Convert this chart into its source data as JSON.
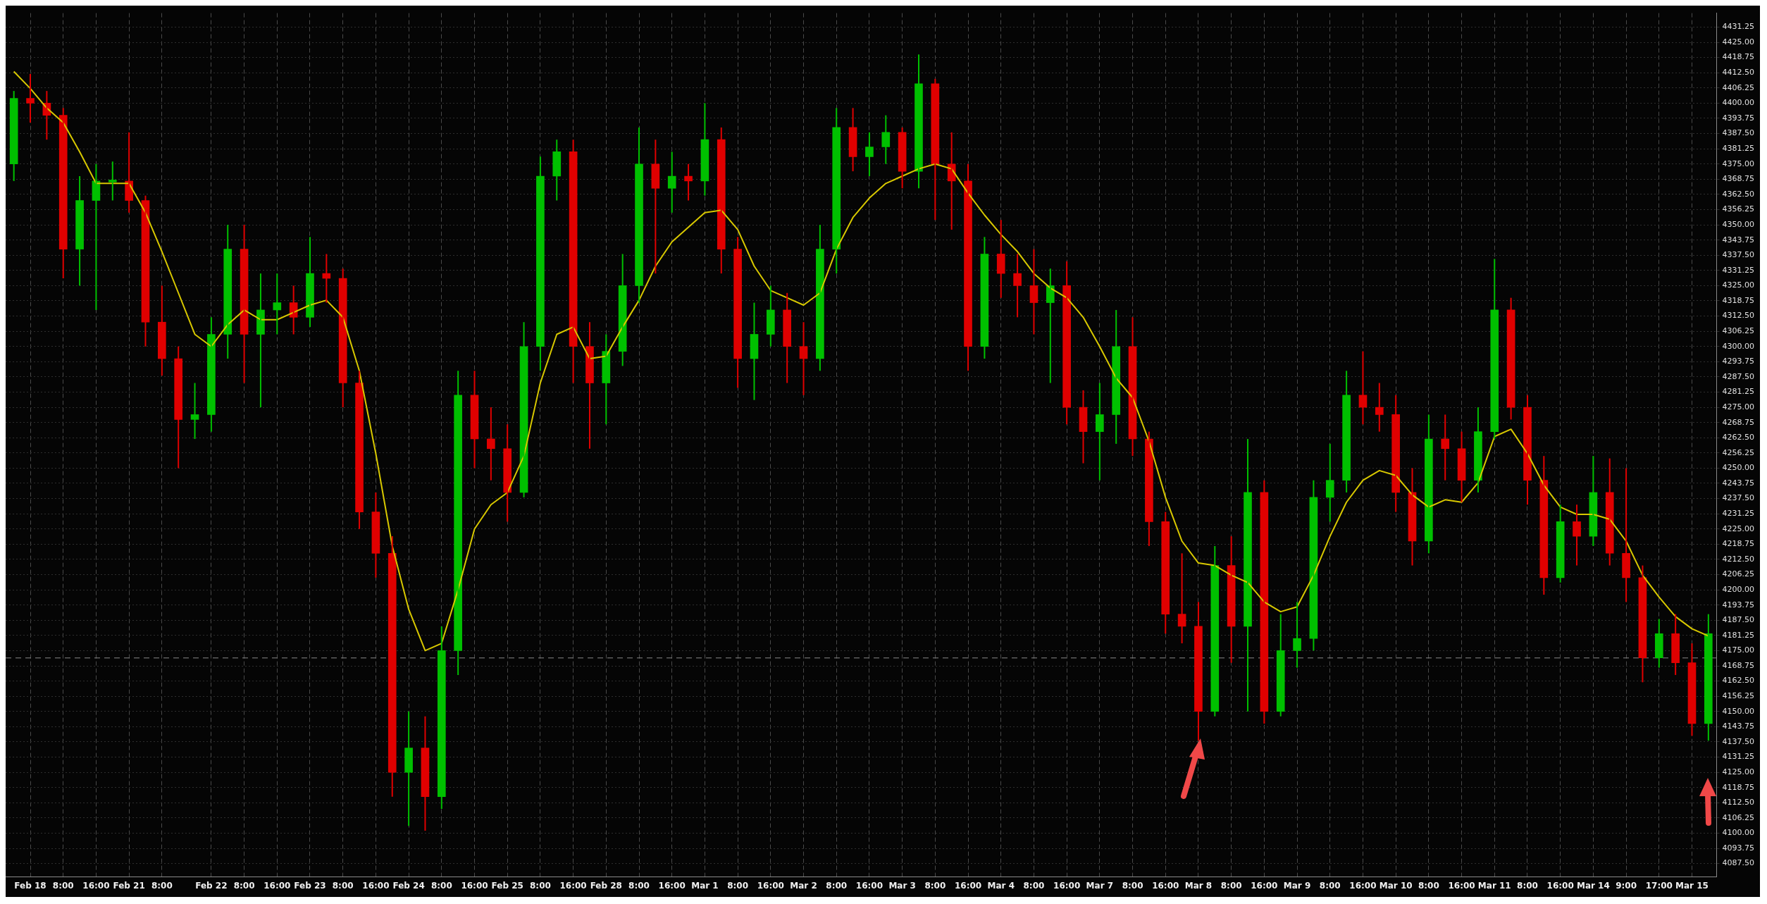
{
  "chart_data": {
    "type": "candlestick",
    "categories": [
      null,
      "Feb 18",
      null,
      "8:00",
      null,
      "16:00",
      null,
      "Feb 21",
      null,
      "8:00",
      null,
      null,
      "Feb 22",
      null,
      "8:00",
      null,
      "16:00",
      null,
      "Feb 23",
      null,
      "8:00",
      null,
      "16:00",
      null,
      "Feb 24",
      null,
      "8:00",
      null,
      "16:00",
      null,
      "Feb 25",
      null,
      "8:00",
      null,
      "16:00",
      null,
      "Feb 28",
      null,
      "8:00",
      null,
      "16:00",
      null,
      "Mar 1",
      null,
      "8:00",
      null,
      "16:00",
      null,
      "Mar 2",
      null,
      "8:00",
      null,
      "16:00",
      null,
      "Mar 3",
      null,
      "8:00",
      null,
      "16:00",
      null,
      "Mar 4",
      null,
      "8:00",
      null,
      "16:00",
      null,
      "Mar 7",
      null,
      "8:00",
      null,
      "16:00",
      null,
      "Mar 8",
      null,
      "8:00",
      null,
      "16:00",
      null,
      "Mar 9",
      null,
      "8:00",
      null,
      "16:00",
      null,
      "Mar 10",
      null,
      "8:00",
      null,
      "16:00",
      null,
      "Mar 11",
      null,
      "8:00",
      null,
      "16:00",
      null,
      "Mar 14",
      null,
      "9:00",
      null,
      "17:00",
      null,
      "Mar 15",
      null
    ],
    "ohlc": [
      [
        4375,
        4405,
        4368,
        4402
      ],
      [
        4402,
        4412,
        4392,
        4400
      ],
      [
        4400,
        4405,
        4385,
        4395
      ],
      [
        4395,
        4398,
        4328,
        4340
      ],
      [
        4340,
        4370,
        4325,
        4360
      ],
      [
        4360,
        4375,
        4315,
        4368
      ],
      [
        4368,
        4376,
        4360,
        4368
      ],
      [
        4368,
        4388,
        4355,
        4360
      ],
      [
        4360,
        4362,
        4300,
        4310
      ],
      [
        4310,
        4325,
        4288,
        4295
      ],
      [
        4295,
        4300,
        4250,
        4270
      ],
      [
        4270,
        4285,
        4262,
        4272
      ],
      [
        4272,
        4312,
        4265,
        4305
      ],
      [
        4305,
        4350,
        4295,
        4340
      ],
      [
        4340,
        4350,
        4285,
        4305
      ],
      [
        4305,
        4330,
        4275,
        4315
      ],
      [
        4315,
        4330,
        4305,
        4318
      ],
      [
        4318,
        4325,
        4305,
        4312
      ],
      [
        4312,
        4345,
        4308,
        4330
      ],
      [
        4330,
        4338,
        4318,
        4328
      ],
      [
        4328,
        4332,
        4275,
        4285
      ],
      [
        4285,
        4290,
        4225,
        4232
      ],
      [
        4232,
        4240,
        4205,
        4215
      ],
      [
        4215,
        4222,
        4115,
        4125
      ],
      [
        4125,
        4150,
        4103,
        4135
      ],
      [
        4135,
        4148,
        4101,
        4115
      ],
      [
        4115,
        4185,
        4110,
        4175
      ],
      [
        4175,
        4290,
        4165,
        4280
      ],
      [
        4280,
        4290,
        4250,
        4262
      ],
      [
        4262,
        4275,
        4245,
        4258
      ],
      [
        4258,
        4268,
        4228,
        4240
      ],
      [
        4240,
        4310,
        4238,
        4300
      ],
      [
        4300,
        4378,
        4290,
        4370
      ],
      [
        4370,
        4385,
        4360,
        4380
      ],
      [
        4380,
        4385,
        4285,
        4300
      ],
      [
        4300,
        4310,
        4258,
        4285
      ],
      [
        4285,
        4305,
        4268,
        4298
      ],
      [
        4298,
        4338,
        4292,
        4325
      ],
      [
        4325,
        4390,
        4318,
        4375
      ],
      [
        4375,
        4385,
        4330,
        4365
      ],
      [
        4365,
        4380,
        4355,
        4370
      ],
      [
        4370,
        4375,
        4360,
        4368
      ],
      [
        4368,
        4400,
        4362,
        4385
      ],
      [
        4385,
        4390,
        4330,
        4340
      ],
      [
        4340,
        4345,
        4283,
        4295
      ],
      [
        4295,
        4318,
        4278,
        4305
      ],
      [
        4305,
        4325,
        4300,
        4315
      ],
      [
        4315,
        4322,
        4285,
        4300
      ],
      [
        4300,
        4310,
        4280,
        4295
      ],
      [
        4295,
        4350,
        4290,
        4340
      ],
      [
        4340,
        4398,
        4330,
        4390
      ],
      [
        4390,
        4398,
        4372,
        4378
      ],
      [
        4378,
        4388,
        4370,
        4382
      ],
      [
        4382,
        4395,
        4375,
        4388
      ],
      [
        4388,
        4390,
        4365,
        4372
      ],
      [
        4372,
        4420,
        4365,
        4408
      ],
      [
        4408,
        4410,
        4352,
        4375
      ],
      [
        4375,
        4388,
        4348,
        4368
      ],
      [
        4368,
        4375,
        4290,
        4300
      ],
      [
        4300,
        4345,
        4295,
        4338
      ],
      [
        4338,
        4352,
        4320,
        4330
      ],
      [
        4330,
        4338,
        4312,
        4325
      ],
      [
        4325,
        4340,
        4305,
        4318
      ],
      [
        4318,
        4332,
        4285,
        4325
      ],
      [
        4325,
        4335,
        4268,
        4275
      ],
      [
        4275,
        4282,
        4252,
        4265
      ],
      [
        4265,
        4285,
        4245,
        4272
      ],
      [
        4272,
        4315,
        4260,
        4300
      ],
      [
        4300,
        4312,
        4255,
        4262
      ],
      [
        4262,
        4265,
        4218,
        4228
      ],
      [
        4228,
        4232,
        4182,
        4190
      ],
      [
        4190,
        4215,
        4178,
        4185
      ],
      [
        4185,
        4195,
        4138,
        4150
      ],
      [
        4150,
        4218,
        4148,
        4210
      ],
      [
        4210,
        4222,
        4170,
        4185
      ],
      [
        4185,
        4262,
        4150,
        4240
      ],
      [
        4240,
        4245,
        4145,
        4150
      ],
      [
        4150,
        4190,
        4148,
        4175
      ],
      [
        4175,
        4195,
        4168,
        4180
      ],
      [
        4180,
        4245,
        4175,
        4238
      ],
      [
        4238,
        4260,
        4228,
        4245
      ],
      [
        4245,
        4290,
        4240,
        4280
      ],
      [
        4280,
        4298,
        4268,
        4275
      ],
      [
        4275,
        4285,
        4265,
        4272
      ],
      [
        4272,
        4280,
        4232,
        4240
      ],
      [
        4240,
        4250,
        4210,
        4220
      ],
      [
        4220,
        4272,
        4215,
        4262
      ],
      [
        4262,
        4272,
        4245,
        4258
      ],
      [
        4258,
        4265,
        4236,
        4245
      ],
      [
        4245,
        4275,
        4240,
        4265
      ],
      [
        4265,
        4336,
        4262,
        4315
      ],
      [
        4315,
        4320,
        4270,
        4275
      ],
      [
        4275,
        4280,
        4235,
        4245
      ],
      [
        4245,
        4255,
        4198,
        4205
      ],
      [
        4205,
        4235,
        4203,
        4228
      ],
      [
        4228,
        4235,
        4210,
        4222
      ],
      [
        4222,
        4255,
        4218,
        4240
      ],
      [
        4240,
        4254,
        4210,
        4215
      ],
      [
        4215,
        4250,
        4195,
        4205
      ],
      [
        4205,
        4210,
        4162,
        4172
      ],
      [
        4172,
        4188,
        4168,
        4182
      ],
      [
        4182,
        4190,
        4165,
        4170
      ],
      [
        4170,
        4178,
        4140,
        4145
      ],
      [
        4145,
        4190,
        4138,
        4182
      ]
    ],
    "series": [
      {
        "type": "line",
        "color": "#d8c800",
        "values": [
          4413,
          4406,
          4398,
          4392,
          4380,
          4367,
          4367,
          4367,
          4355,
          4339,
          4322,
          4305,
          4300,
          4309,
          4315,
          4311,
          4311,
          4314,
          4317,
          4319,
          4312,
          4290,
          4256,
          4218,
          4192,
          4175,
          4178,
          4200,
          4225,
          4235,
          4240,
          4255,
          4285,
          4305,
          4308,
          4295,
          4296,
          4308,
          4319,
          4333,
          4343,
          4349,
          4355,
          4356,
          4348,
          4333,
          4323,
          4320,
          4317,
          4322,
          4340,
          4353,
          4361,
          4367,
          4370,
          4373,
          4375,
          4373,
          4363,
          4354,
          4346,
          4339,
          4330,
          4324,
          4320,
          4312,
          4300,
          4287,
          4279,
          4261,
          4238,
          4220,
          4211,
          4210,
          4206,
          4203,
          4195,
          4191,
          4193,
          4206,
          4222,
          4236,
          4245,
          4249,
          4247,
          4239,
          4234,
          4237,
          4236,
          4244,
          4263,
          4266,
          4256,
          4243,
          4234,
          4231,
          4231,
          4229,
          4220,
          4206,
          4197,
          4189,
          4184,
          4181
        ]
      }
    ],
    "ylim": [
      4082,
      4437
    ],
    "yticks": [
      {
        "value": 4087.5,
        "label": "4087.50"
      },
      {
        "value": 4093.75,
        "label": "4093.75"
      },
      {
        "value": 4100,
        "label": "4100.00"
      },
      {
        "value": 4106.25,
        "label": "4106.25"
      },
      {
        "value": 4112.5,
        "label": "4112.50"
      },
      {
        "value": 4118.75,
        "label": "4118.75"
      },
      {
        "value": 4125,
        "label": "4125.00"
      },
      {
        "value": 4131.25,
        "label": "4131.25"
      },
      {
        "value": 4137.5,
        "label": "4137.50"
      },
      {
        "value": 4143.75,
        "label": "4143.75"
      },
      {
        "value": 4150,
        "label": "4150.00"
      },
      {
        "value": 4156.25,
        "label": "4156.25"
      },
      {
        "value": 4162.5,
        "label": "4162.50"
      },
      {
        "value": 4168.75,
        "label": "4168.75"
      },
      {
        "value": 4175,
        "label": "4175.00"
      },
      {
        "value": 4181.25,
        "label": "4181.25"
      },
      {
        "value": 4187.5,
        "label": "4187.50"
      },
      {
        "value": 4193.75,
        "label": "4193.75"
      },
      {
        "value": 4200,
        "label": "4200.00"
      },
      {
        "value": 4206.25,
        "label": "4206.25"
      },
      {
        "value": 4212.5,
        "label": "4212.50"
      },
      {
        "value": 4218.75,
        "label": "4218.75"
      },
      {
        "value": 4225,
        "label": "4225.00"
      },
      {
        "value": 4231.25,
        "label": "4231.25"
      },
      {
        "value": 4237.5,
        "label": "4237.50"
      },
      {
        "value": 4243.75,
        "label": "4243.75"
      },
      {
        "value": 4250,
        "label": "4250.00"
      },
      {
        "value": 4256.25,
        "label": "4256.25"
      },
      {
        "value": 4262.5,
        "label": "4262.50"
      },
      {
        "value": 4268.75,
        "label": "4268.75"
      },
      {
        "value": 4275,
        "label": "4275.00"
      },
      {
        "value": 4281.25,
        "label": "4281.25"
      },
      {
        "value": 4287.5,
        "label": "4287.50"
      },
      {
        "value": 4293.75,
        "label": "4293.75"
      },
      {
        "value": 4300,
        "label": "4300.00"
      },
      {
        "value": 4306.25,
        "label": "4306.25"
      },
      {
        "value": 4312.5,
        "label": "4312.50"
      },
      {
        "value": 4318.75,
        "label": "4318.75"
      },
      {
        "value": 4325,
        "label": "4325.00"
      },
      {
        "value": 4331.25,
        "label": "4331.25"
      },
      {
        "value": 4337.5,
        "label": "4337.50"
      },
      {
        "value": 4343.75,
        "label": "4343.75"
      },
      {
        "value": 4350,
        "label": "4350.00"
      },
      {
        "value": 4356.25,
        "label": "4356.25"
      },
      {
        "value": 4362.5,
        "label": "4362.50"
      },
      {
        "value": 4368.75,
        "label": "4368.75"
      },
      {
        "value": 4375,
        "label": "4375.00"
      },
      {
        "value": 4381.25,
        "label": "4381.25"
      },
      {
        "value": 4387.5,
        "label": "4387.50"
      },
      {
        "value": 4393.75,
        "label": "4393.75"
      },
      {
        "value": 4400,
        "label": "4400.00"
      },
      {
        "value": 4406.25,
        "label": "4406.25"
      },
      {
        "value": 4412.5,
        "label": "4412.50"
      },
      {
        "value": 4418.75,
        "label": "4418.75"
      },
      {
        "value": 4425,
        "label": "4425.00"
      },
      {
        "value": 4431.25,
        "label": "4431.25"
      }
    ],
    "grid": true,
    "ref_lines": [
      {
        "axis": "y",
        "value": 4172,
        "color": "#8a8a8a",
        "line_style": "dashed"
      }
    ]
  }
}
